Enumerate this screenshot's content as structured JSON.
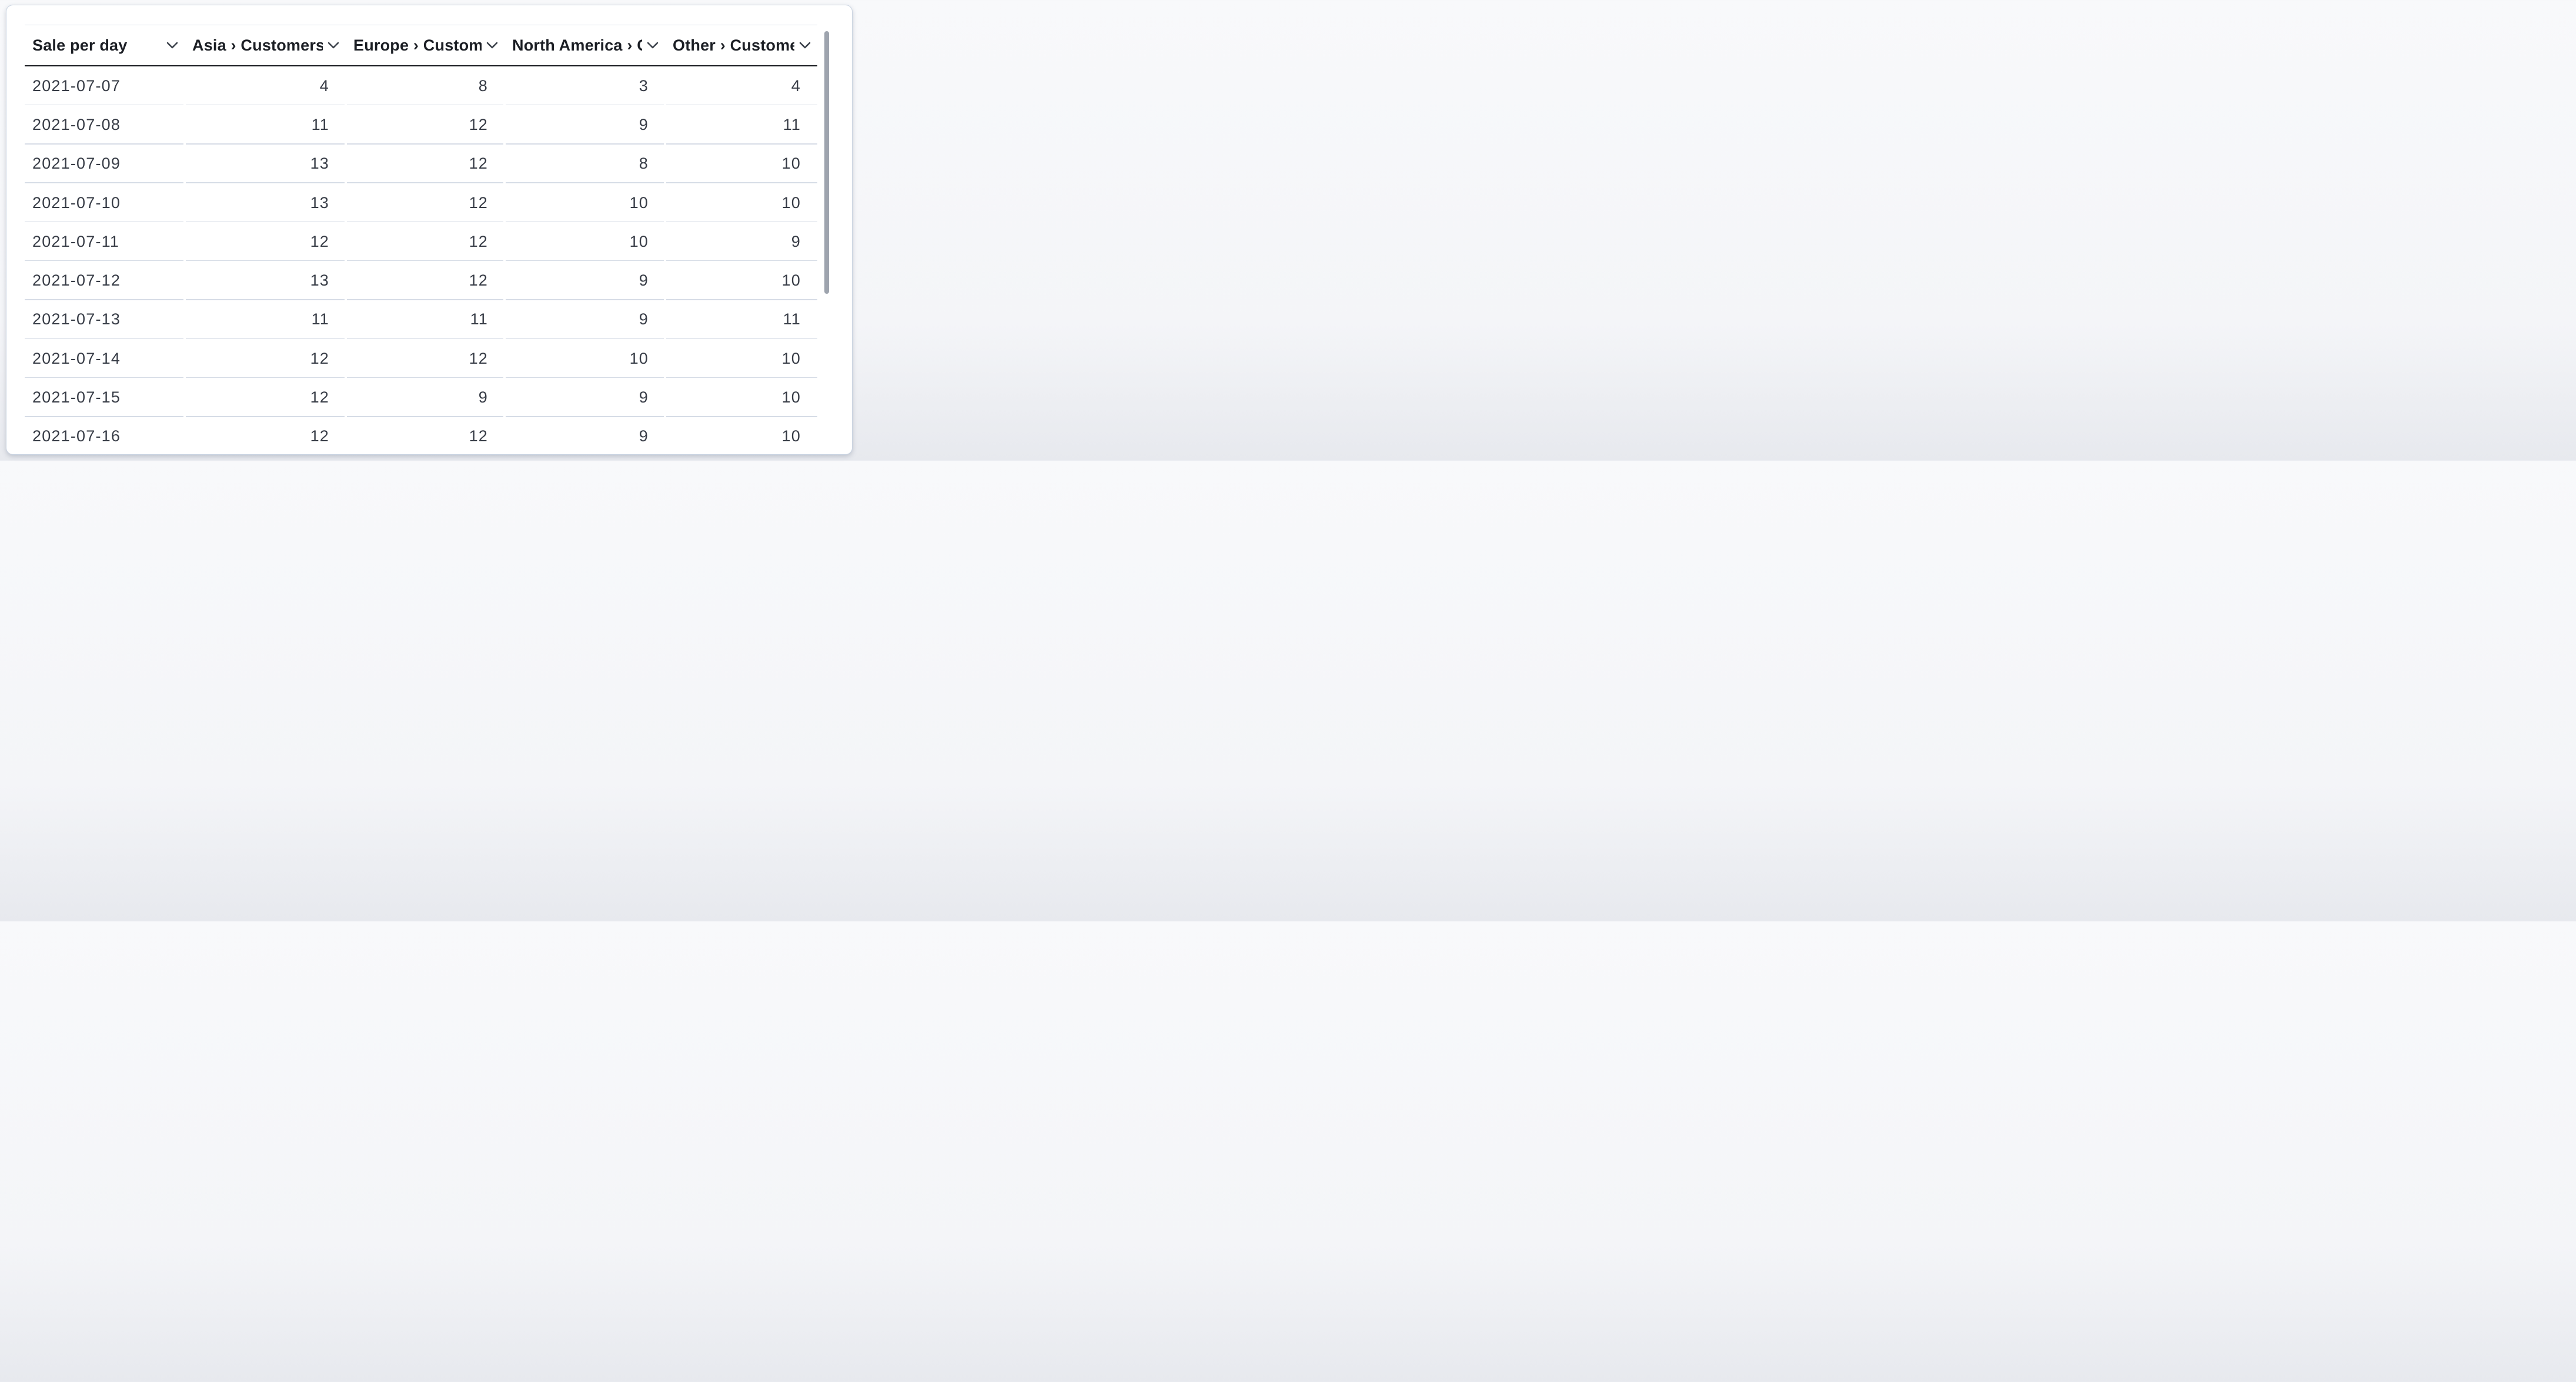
{
  "table": {
    "columns": [
      {
        "label": "Sale per day",
        "align": "left"
      },
      {
        "label": "Asia › Customers",
        "align": "right"
      },
      {
        "label": "Europe › Customers",
        "align": "right"
      },
      {
        "label": "North America › Customers",
        "align": "right"
      },
      {
        "label": "Other › Customers",
        "align": "right"
      }
    ],
    "rows": [
      {
        "date": "2021-07-07",
        "values": [
          4,
          8,
          3,
          4
        ]
      },
      {
        "date": "2021-07-08",
        "values": [
          11,
          12,
          9,
          11
        ]
      },
      {
        "date": "2021-07-09",
        "values": [
          13,
          12,
          8,
          10
        ]
      },
      {
        "date": "2021-07-10",
        "values": [
          13,
          12,
          10,
          10
        ]
      },
      {
        "date": "2021-07-11",
        "values": [
          12,
          12,
          10,
          9
        ]
      },
      {
        "date": "2021-07-12",
        "values": [
          13,
          12,
          9,
          10
        ]
      },
      {
        "date": "2021-07-13",
        "values": [
          11,
          11,
          9,
          11
        ]
      },
      {
        "date": "2021-07-14",
        "values": [
          12,
          12,
          10,
          10
        ]
      },
      {
        "date": "2021-07-15",
        "values": [
          12,
          9,
          9,
          10
        ]
      },
      {
        "date": "2021-07-16",
        "values": [
          12,
          12,
          9,
          10
        ]
      }
    ]
  },
  "icons": {
    "header_sort": "chevron-down-icon"
  },
  "scrollbar": {
    "vertical_visible": true
  },
  "colors": {
    "page_bg": "#F4F5F8",
    "card_bg": "#FFFFFF",
    "card_border": "#C9D3E1",
    "header_text": "#1B1E24",
    "cell_text": "#373C46",
    "row_divider": "#D6DCE6",
    "header_divider": "#15171C",
    "scrollbar_thumb": "#9EA4AE"
  },
  "chart_data": {
    "type": "table",
    "title": "Sale per day",
    "categories": [
      "2021-07-07",
      "2021-07-08",
      "2021-07-09",
      "2021-07-10",
      "2021-07-11",
      "2021-07-12",
      "2021-07-13",
      "2021-07-14",
      "2021-07-15",
      "2021-07-16"
    ],
    "series": [
      {
        "name": "Asia › Customers",
        "values": [
          4,
          11,
          13,
          13,
          12,
          13,
          11,
          12,
          12,
          12
        ]
      },
      {
        "name": "Europe › Customers",
        "values": [
          8,
          12,
          12,
          12,
          12,
          12,
          11,
          12,
          9,
          12
        ]
      },
      {
        "name": "North America › Customers",
        "values": [
          3,
          9,
          8,
          10,
          10,
          9,
          9,
          10,
          9,
          9
        ]
      },
      {
        "name": "Other › Customers",
        "values": [
          4,
          11,
          10,
          10,
          9,
          10,
          11,
          10,
          10,
          10
        ]
      }
    ]
  }
}
